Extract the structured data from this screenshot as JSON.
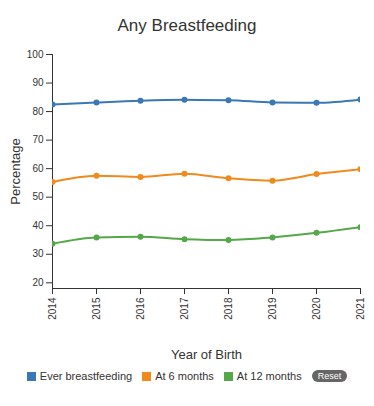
{
  "chart_data": {
    "type": "line",
    "title": "Any Breastfeeding",
    "x_label": "Year of Birth",
    "y_label": "Percentage",
    "x": [
      2014,
      2015,
      2016,
      2017,
      2018,
      2019,
      2020,
      2021
    ],
    "series": [
      {
        "name": "Ever breastfeeding",
        "color": "#3a78b5",
        "values": [
          82.5,
          83.2,
          83.8,
          84.1,
          84.0,
          83.2,
          83.1,
          84.2
        ]
      },
      {
        "name": "At 6 months",
        "color": "#f08a1c",
        "values": [
          55.3,
          57.5,
          57.1,
          58.2,
          56.6,
          55.8,
          58.1,
          59.8
        ]
      },
      {
        "name": "At 12 months",
        "color": "#54a84a",
        "values": [
          33.7,
          35.9,
          36.1,
          35.3,
          35.0,
          35.9,
          37.5,
          39.5
        ]
      }
    ],
    "xlim": [
      2014,
      2021
    ],
    "xticks": [
      2014,
      2015,
      2016,
      2017,
      2018,
      2019,
      2020,
      2021
    ],
    "ylim": [
      18,
      100
    ],
    "yticks": [
      20,
      30,
      40,
      50,
      60,
      70,
      80,
      90,
      100
    ],
    "grid": false,
    "marker": "circle",
    "legend": "bottom"
  },
  "buttons": [
    "Reset"
  ]
}
